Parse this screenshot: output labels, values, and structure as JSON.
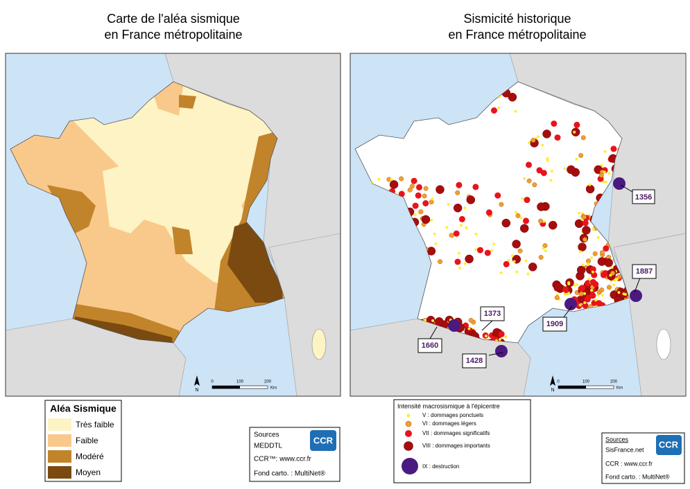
{
  "left_map": {
    "title": [
      "Carte de l'aléa sismique",
      "en France métropolitaine"
    ],
    "legend": {
      "title": "Aléa Sismique",
      "items": [
        "Très faible",
        "Faible",
        "Modéré",
        "Moyen"
      ]
    },
    "sources": {
      "heading": "Sources",
      "lines": [
        "MEDDTL",
        "CCR™: www.ccr.fr",
        "Fond carto. : MultiNet®"
      ]
    },
    "logo": "CCR",
    "scale": [
      "0",
      "100",
      "200",
      "Km"
    ],
    "north": "N"
  },
  "right_map": {
    "title": [
      "Sismicité historique",
      "en France métropolitaine"
    ],
    "annotations": [
      "1356",
      "1887",
      "1909",
      "1373",
      "1660",
      "1428"
    ],
    "legend": {
      "title": "Intensité macrosismique à l'épicentre",
      "items": [
        "V : dommages ponctuels",
        "VI : dommages légers",
        "VII : dommages significatifs",
        "VIII : dommages importants",
        "IX : destruction"
      ]
    },
    "sources": {
      "heading": "Sources",
      "lines": [
        "SisFrance.net",
        "CCR : www.ccr.fr",
        "Fond carto. : MultiNet®"
      ]
    },
    "logo": "CCR",
    "scale": [
      "0",
      "100",
      "200",
      "Km"
    ],
    "north": "N"
  }
}
